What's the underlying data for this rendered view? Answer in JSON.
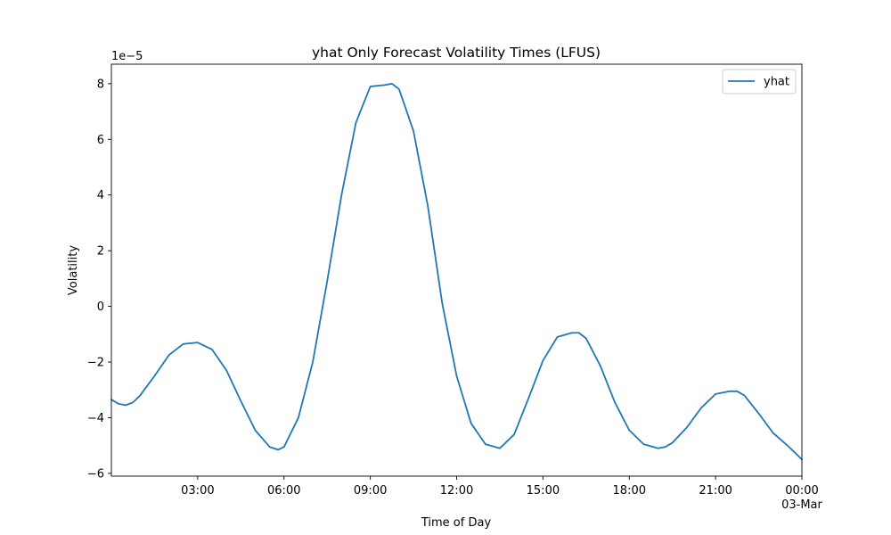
{
  "chart_data": {
    "type": "line",
    "title": "yhat Only Forecast Volatility Times (LFUS)",
    "xlabel": "Time of Day",
    "ylabel": "Volatility",
    "y_offset_label": "1e−5",
    "y_scale_note": "y values multiplied by 1e-5",
    "xlim": [
      "2024-03-02T00:00",
      "2024-03-03T00:00"
    ],
    "ylim": [
      -6.1,
      8.7
    ],
    "x_ticks": [
      {
        "value": "2024-03-02T03:00",
        "label": "03:00"
      },
      {
        "value": "2024-03-02T06:00",
        "label": "06:00"
      },
      {
        "value": "2024-03-02T09:00",
        "label": "09:00"
      },
      {
        "value": "2024-03-02T12:00",
        "label": "12:00"
      },
      {
        "value": "2024-03-02T15:00",
        "label": "15:00"
      },
      {
        "value": "2024-03-02T18:00",
        "label": "18:00"
      },
      {
        "value": "2024-03-02T21:00",
        "label": "21:00"
      },
      {
        "value": "2024-03-03T00:00",
        "label": "00:00",
        "sublabel": "03-Mar"
      }
    ],
    "y_ticks": [
      -6,
      -4,
      -2,
      0,
      2,
      4,
      6,
      8
    ],
    "y_tick_labels": [
      "−6",
      "−4",
      "−2",
      "0",
      "2",
      "4",
      "6",
      "8"
    ],
    "grid": false,
    "legend": "top-right",
    "series": [
      {
        "name": "yhat",
        "color": "#1f77b4",
        "x": [
          "2024-03-02T00:00",
          "2024-03-02T00:15",
          "2024-03-02T00:30",
          "2024-03-02T00:45",
          "2024-03-02T01:00",
          "2024-03-02T01:30",
          "2024-03-02T02:00",
          "2024-03-02T02:30",
          "2024-03-02T03:00",
          "2024-03-02T03:30",
          "2024-03-02T04:00",
          "2024-03-02T04:30",
          "2024-03-02T05:00",
          "2024-03-02T05:30",
          "2024-03-02T05:48",
          "2024-03-02T06:00",
          "2024-03-02T06:30",
          "2024-03-02T07:00",
          "2024-03-02T07:30",
          "2024-03-02T08:00",
          "2024-03-02T08:30",
          "2024-03-02T09:00",
          "2024-03-02T09:30",
          "2024-03-02T09:45",
          "2024-03-02T10:00",
          "2024-03-02T10:30",
          "2024-03-02T11:00",
          "2024-03-02T11:30",
          "2024-03-02T12:00",
          "2024-03-02T12:30",
          "2024-03-02T13:00",
          "2024-03-02T13:30",
          "2024-03-02T14:00",
          "2024-03-02T14:30",
          "2024-03-02T15:00",
          "2024-03-02T15:30",
          "2024-03-02T16:00",
          "2024-03-02T16:15",
          "2024-03-02T16:30",
          "2024-03-02T17:00",
          "2024-03-02T17:30",
          "2024-03-02T18:00",
          "2024-03-02T18:30",
          "2024-03-02T19:00",
          "2024-03-02T19:15",
          "2024-03-02T19:30",
          "2024-03-02T20:00",
          "2024-03-02T20:30",
          "2024-03-02T21:00",
          "2024-03-02T21:30",
          "2024-03-02T21:45",
          "2024-03-02T22:00",
          "2024-03-02T22:30",
          "2024-03-02T23:00",
          "2024-03-02T23:30",
          "2024-03-03T00:00"
        ],
        "y": [
          -3.35,
          -3.5,
          -3.55,
          -3.45,
          -3.2,
          -2.5,
          -1.75,
          -1.35,
          -1.3,
          -1.55,
          -2.3,
          -3.4,
          -4.45,
          -5.05,
          -5.15,
          -5.05,
          -4.0,
          -2.0,
          0.9,
          4.0,
          6.6,
          7.9,
          7.95,
          8.0,
          7.8,
          6.3,
          3.6,
          0.1,
          -2.5,
          -4.2,
          -4.95,
          -5.1,
          -4.6,
          -3.3,
          -1.95,
          -1.1,
          -0.95,
          -0.95,
          -1.15,
          -2.15,
          -3.45,
          -4.45,
          -4.95,
          -5.1,
          -5.05,
          -4.9,
          -4.35,
          -3.65,
          -3.15,
          -3.05,
          -3.05,
          -3.2,
          -3.85,
          -4.55,
          -5.0,
          -5.5
        ]
      }
    ]
  }
}
